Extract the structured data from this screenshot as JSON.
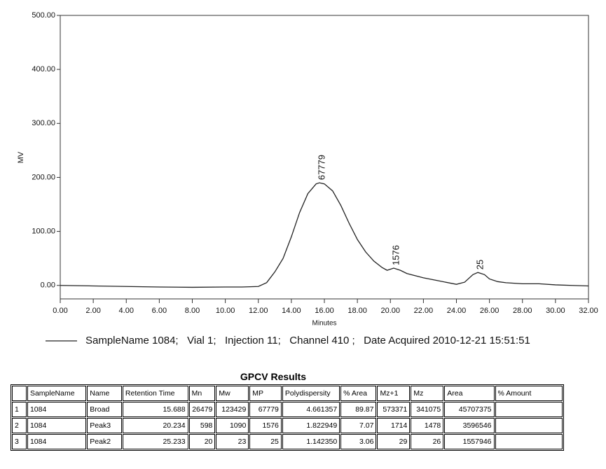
{
  "chart_data": {
    "type": "line",
    "y_label": "MV",
    "x_label": "Minutes",
    "xlim": [
      0,
      32
    ],
    "ylim": [
      -25,
      500
    ],
    "xticks": [
      {
        "value": 0,
        "label": "0.00"
      },
      {
        "value": 2,
        "label": "2.00"
      },
      {
        "value": 4,
        "label": "4.00"
      },
      {
        "value": 6,
        "label": "6.00"
      },
      {
        "value": 8,
        "label": "8.00"
      },
      {
        "value": 10,
        "label": "10.00"
      },
      {
        "value": 12,
        "label": "12.00"
      },
      {
        "value": 14,
        "label": "14.00"
      },
      {
        "value": 16,
        "label": "16.00"
      },
      {
        "value": 18,
        "label": "18.00"
      },
      {
        "value": 20,
        "label": "20.00"
      },
      {
        "value": 22,
        "label": "22.00"
      },
      {
        "value": 24,
        "label": "24.00"
      },
      {
        "value": 26,
        "label": "26.00"
      },
      {
        "value": 28,
        "label": "28.00"
      },
      {
        "value": 30,
        "label": "30.00"
      },
      {
        "value": 32,
        "label": "32.00"
      }
    ],
    "yticks": [
      {
        "value": 0,
        "label": "0.00"
      },
      {
        "value": 100,
        "label": "100.00"
      },
      {
        "value": 200,
        "label": "200.00"
      },
      {
        "value": 300,
        "label": "300.00"
      },
      {
        "value": 400,
        "label": "400.00"
      },
      {
        "value": 500,
        "label": "500.00"
      }
    ],
    "x": [
      0,
      2,
      4,
      6,
      8,
      10,
      11,
      12,
      12.5,
      13,
      13.5,
      14,
      14.5,
      15,
      15.5,
      15.7,
      16,
      16.5,
      17,
      17.5,
      18,
      18.5,
      19,
      19.5,
      19.8,
      20.2,
      20.6,
      21,
      22,
      23,
      24,
      24.5,
      25,
      25.3,
      25.7,
      26,
      26.5,
      27,
      28,
      29,
      30,
      31,
      32
    ],
    "series": [
      {
        "name": "SampleName 1084;   Vial 1;   Injection 11;   Channel 410 ;   Date Acquired 2010-12-21 15:51:51",
        "color": "#222222",
        "values": [
          0,
          -1,
          -2,
          -3,
          -3.5,
          -3,
          -3,
          -2,
          5,
          25,
          50,
          90,
          135,
          170,
          188,
          190,
          188,
          175,
          148,
          115,
          85,
          62,
          45,
          33,
          28,
          32,
          28,
          22,
          14,
          8,
          2,
          6,
          20,
          24,
          20,
          12,
          7,
          5,
          3,
          3,
          1,
          0,
          -1
        ]
      }
    ],
    "annotations": [
      {
        "text": "67779",
        "x": 15.7,
        "y": 190
      },
      {
        "text": "1576",
        "x": 20.2,
        "y": 32
      },
      {
        "text": "25",
        "x": 25.3,
        "y": 24
      }
    ]
  },
  "table": {
    "title": "GPCV Results",
    "header": [
      "SampleName",
      "Name",
      "Retention Time",
      "Mn",
      "Mw",
      "MP",
      "Polydispersity",
      "% Area",
      "Mz+1",
      "Mz",
      "Area",
      "% Amount"
    ],
    "rows": [
      [
        "1",
        "1084",
        "Broad",
        "15.688",
        "26479",
        "123429",
        "67779",
        "4.661357",
        "89.87",
        "573371",
        "341075",
        "45707375"
      ],
      [
        "2",
        "1084",
        "Peak3",
        "20.234",
        "598",
        "1090",
        "1576",
        "1.822949",
        "7.07",
        "1714",
        "1478",
        "3596546"
      ],
      [
        "3",
        "1084",
        "Peak2",
        "25.233",
        "20",
        "23",
        "25",
        "1.142350",
        "3.06",
        "29",
        "26",
        "1557946"
      ]
    ]
  }
}
